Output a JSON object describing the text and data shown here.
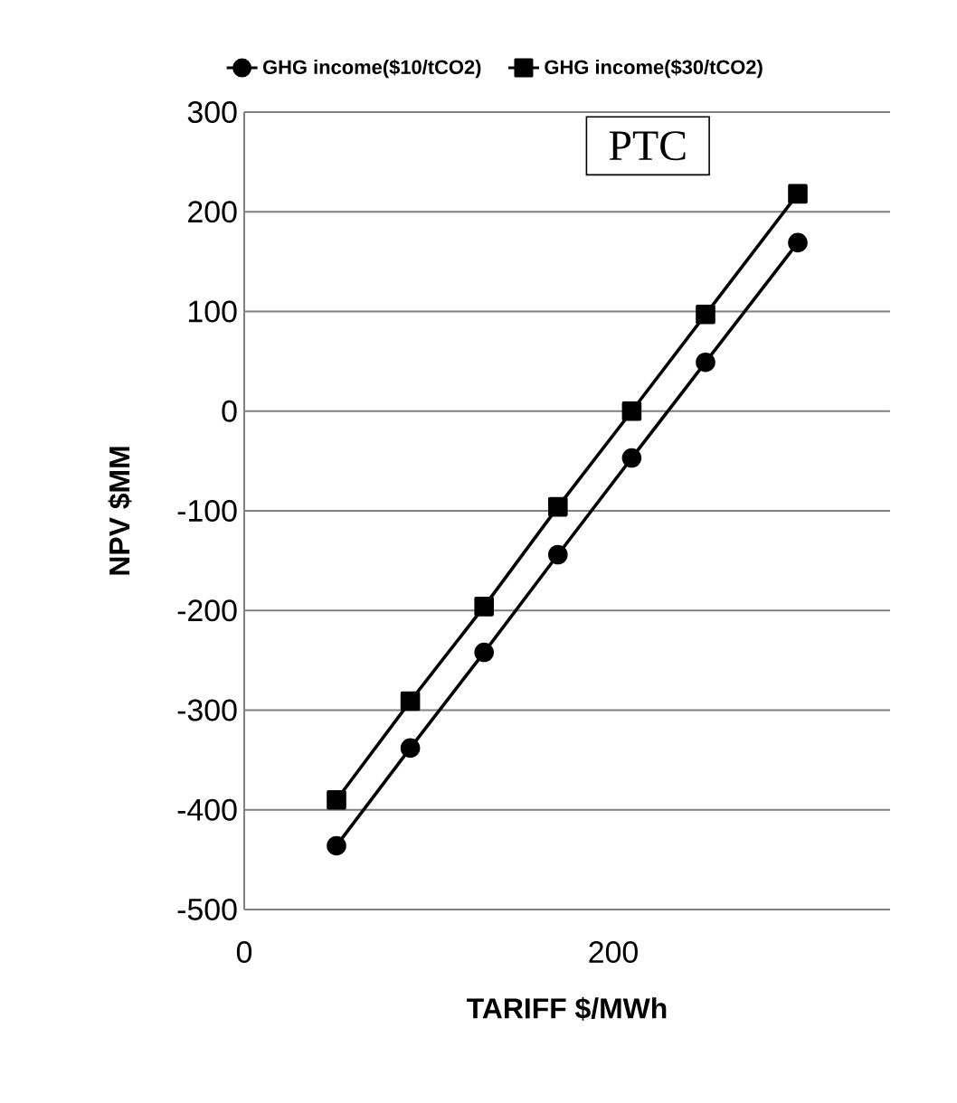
{
  "chart_data": {
    "type": "line",
    "xlabel": "TARIFF $/MWh",
    "ylabel": "NPV $MM",
    "annotations": [
      "PTC"
    ],
    "series": [
      {
        "name": "GHG income($10/tCO2)",
        "color": "#000000",
        "marker": "circle",
        "x": [
          50,
          90,
          130,
          170,
          210,
          250,
          300
        ],
        "values": [
          -436,
          -338,
          -242,
          -144,
          -47,
          49,
          169
        ]
      },
      {
        "name": "GHG income($30/tCO2)",
        "color": "#000000",
        "marker": "square",
        "x": [
          50,
          90,
          130,
          170,
          210,
          250,
          300
        ],
        "values": [
          -390,
          -291,
          -196,
          -96,
          0,
          97,
          218
        ]
      }
    ],
    "xlim": [
      0,
      350
    ],
    "xticks": [
      0,
      200
    ],
    "ylim": [
      -500,
      300
    ],
    "yticks": [
      -500,
      -400,
      -300,
      -200,
      -100,
      0,
      100,
      200,
      300
    ],
    "grid": "y",
    "legend": "top",
    "line_style": "solid"
  }
}
